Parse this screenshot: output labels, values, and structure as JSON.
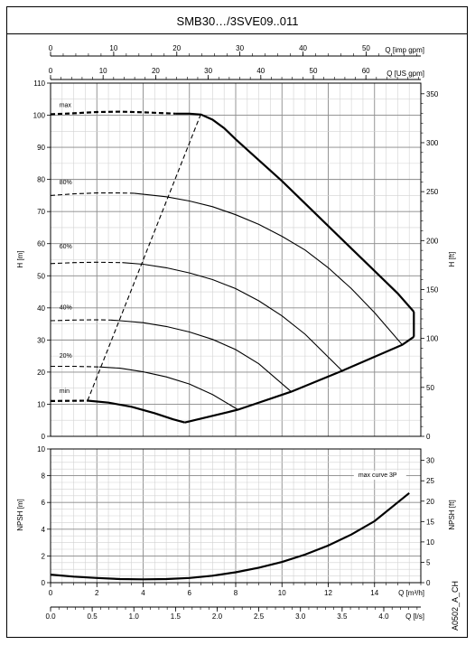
{
  "title": "SMB30…/3SVE09..011",
  "code": "A0502_A_CH",
  "top_axes": {
    "imp": {
      "label": "Q [imp gpm]",
      "ticks": [
        0,
        10,
        20,
        30,
        40,
        50
      ]
    },
    "us": {
      "label": "Q [US gpm]",
      "ticks": [
        0,
        10,
        20,
        30,
        40,
        50,
        60
      ]
    }
  },
  "bottom_axes": {
    "m3h": {
      "label": "Q [m³/h]",
      "ticks": [
        0,
        2,
        4,
        6,
        8,
        10,
        12,
        14
      ]
    },
    "ls": {
      "label": "Q [l/s]",
      "ticks": [
        "0.0",
        "0.5",
        "1.0",
        "1.5",
        "2.0",
        "2.5",
        "3.0",
        "3.5",
        "4.0"
      ]
    }
  },
  "chart_data": [
    {
      "type": "line",
      "title": "",
      "xlabel": "Q [m³/h]",
      "ylabel": "H [m]",
      "ylabel_right": "H [ft]",
      "xlim": [
        0,
        16
      ],
      "ylim": [
        0,
        110
      ],
      "yticks": [
        0,
        10,
        20,
        30,
        40,
        50,
        60,
        70,
        80,
        90,
        100,
        110
      ],
      "yticks_right": [
        0,
        50,
        100,
        150,
        200,
        250,
        300,
        350
      ],
      "grid": true,
      "series": [
        {
          "name": "max",
          "style": "bold",
          "label_at": [
            0.3,
            102.5
          ],
          "dashed_x": [
            0,
            1,
            2,
            3,
            4,
            5,
            5.4
          ],
          "dashed_y": [
            100.3,
            100.6,
            101,
            101.1,
            100.9,
            100.6,
            100.5
          ],
          "x": [
            5.4,
            6,
            6.5,
            7,
            7.5,
            8,
            9,
            10,
            11,
            12,
            13,
            14,
            15,
            15.7
          ],
          "y": [
            100.5,
            100.5,
            100.2,
            98.6,
            96,
            92.5,
            86,
            79.5,
            72.5,
            65.5,
            58.5,
            51.5,
            44.5,
            38.8
          ]
        },
        {
          "name": "80%",
          "label_at": [
            0.3,
            78.5
          ],
          "dashed_x": [
            0,
            1,
            2,
            3,
            3.6
          ],
          "dashed_y": [
            75,
            75.5,
            75.8,
            75.8,
            75.7
          ],
          "x": [
            3.6,
            5,
            6,
            7,
            8,
            9,
            10,
            11,
            12,
            13,
            14,
            15.2
          ],
          "y": [
            75.7,
            74.6,
            73.3,
            71.5,
            69,
            66,
            62.3,
            58,
            52.5,
            46,
            38.5,
            28.5
          ]
        },
        {
          "name": "60%",
          "label_at": [
            0.3,
            58.5
          ],
          "dashed_x": [
            0,
            1,
            2,
            3,
            3.1
          ],
          "dashed_y": [
            53.8,
            54.1,
            54.2,
            54.1,
            54.1
          ],
          "x": [
            3.1,
            4,
            5,
            6,
            7,
            8,
            9,
            10,
            11,
            12.6
          ],
          "y": [
            54.1,
            53.6,
            52.5,
            50.9,
            48.8,
            46,
            42.2,
            37.5,
            31.8,
            20.4
          ]
        },
        {
          "name": "40%",
          "label_at": [
            0.3,
            39.5
          ],
          "dashed_x": [
            0,
            1,
            2,
            2.6
          ],
          "dashed_y": [
            36,
            36.2,
            36.3,
            36.2
          ],
          "x": [
            2.6,
            3,
            4,
            5,
            6,
            7,
            8,
            9,
            10.4
          ],
          "y": [
            36.2,
            36,
            35.4,
            34.2,
            32.5,
            30.2,
            27,
            22.6,
            13.9
          ]
        },
        {
          "name": "20%",
          "label_at": [
            0.3,
            24.5
          ],
          "dashed_x": [
            0,
            1,
            2.1
          ],
          "dashed_y": [
            21.8,
            21.8,
            21.6
          ],
          "x": [
            2.1,
            3,
            4,
            5,
            6,
            7,
            8.1
          ],
          "y": [
            21.6,
            21.2,
            20.1,
            18.5,
            16.3,
            13,
            8.3
          ]
        },
        {
          "name": "min",
          "style": "bold",
          "label_at": [
            0.3,
            13.5
          ],
          "dashed_x": [
            0,
            1.6
          ],
          "dashed_y": [
            11,
            11.1
          ],
          "x": [
            1.6,
            2.5,
            3.5,
            4.5,
            5.3,
            5.8
          ],
          "y": [
            11.1,
            10.5,
            9.2,
            7.2,
            5.3,
            4.3
          ]
        }
      ],
      "limit_curves": [
        {
          "name": "minimum flow limit",
          "style": "dashed",
          "x": [
            1.6,
            6.5
          ],
          "y": [
            11.1,
            100.5
          ]
        },
        {
          "name": "maximum flow limit",
          "style": "bold",
          "x": [
            5.8,
            8.1,
            10.4,
            12.6,
            15.2,
            15.7
          ],
          "y": [
            4.3,
            8.3,
            13.9,
            20.4,
            28.5,
            31
          ]
        },
        {
          "name": "max curve end",
          "style": "bold",
          "x": [
            15.7,
            15.7
          ],
          "y": [
            38.8,
            31
          ]
        }
      ]
    },
    {
      "type": "line",
      "title": "",
      "xlabel": "Q [m³/h]",
      "ylabel": "NPSH [m]",
      "ylabel_right": "NPSH [ft]",
      "xlim": [
        0,
        16
      ],
      "ylim": [
        0,
        10
      ],
      "yticks": [
        0,
        2,
        4,
        6,
        8,
        10
      ],
      "yticks_right": [
        0,
        5,
        10,
        15,
        20,
        25,
        30
      ],
      "grid": true,
      "annotation": "max curve 3P",
      "series": [
        {
          "name": "max curve 3P",
          "x": [
            0,
            1,
            2,
            3,
            4,
            5,
            6,
            7,
            8,
            9,
            10,
            11,
            12,
            13,
            14,
            15.5
          ],
          "y": [
            0.6,
            0.45,
            0.35,
            0.27,
            0.25,
            0.27,
            0.35,
            0.52,
            0.78,
            1.12,
            1.55,
            2.1,
            2.78,
            3.6,
            4.6,
            6.7
          ]
        }
      ]
    }
  ]
}
